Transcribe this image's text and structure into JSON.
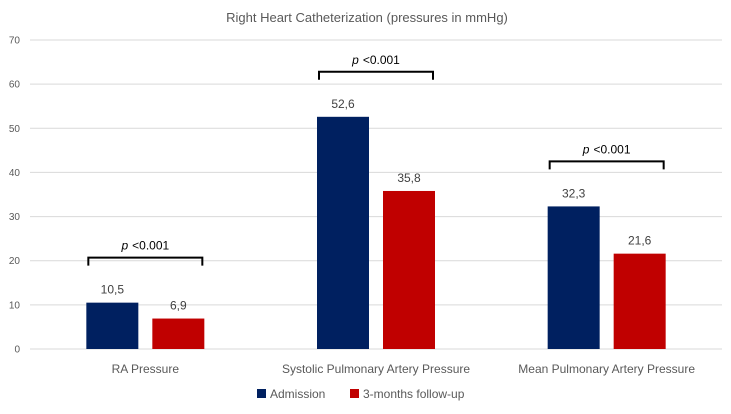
{
  "chart_data": {
    "type": "bar",
    "title": "Right Heart Catheterization (pressures in mmHg)",
    "categories": [
      "RA Pressure",
      "Systolic Pulmonary Artery Pressure",
      "Mean Pulmonary Artery Pressure"
    ],
    "series": [
      {
        "name": "Admission",
        "values": [
          10.5,
          52.6,
          32.3
        ],
        "labels": [
          "10,5",
          "52,6",
          "32,3"
        ],
        "color": "#002060"
      },
      {
        "name": "3-months follow-up",
        "values": [
          6.9,
          35.8,
          21.6
        ],
        "labels": [
          "6,9",
          "35,8",
          "21,6"
        ],
        "color": "#c00000"
      }
    ],
    "ylim": [
      0,
      70
    ],
    "yticks": [
      "0",
      "10",
      "20",
      "30",
      "40",
      "50",
      "60",
      "70"
    ],
    "grid": true,
    "legend": "bottom",
    "annotations": [
      {
        "category": "RA Pressure",
        "p_symbol": "p",
        "p_value": "<0.001"
      },
      {
        "category": "Systolic Pulmonary Artery Pressure",
        "p_symbol": "p",
        "p_value": "<0.001"
      },
      {
        "category": "Mean Pulmonary Artery Pressure",
        "p_symbol": "p",
        "p_value": "<0.001"
      }
    ]
  }
}
